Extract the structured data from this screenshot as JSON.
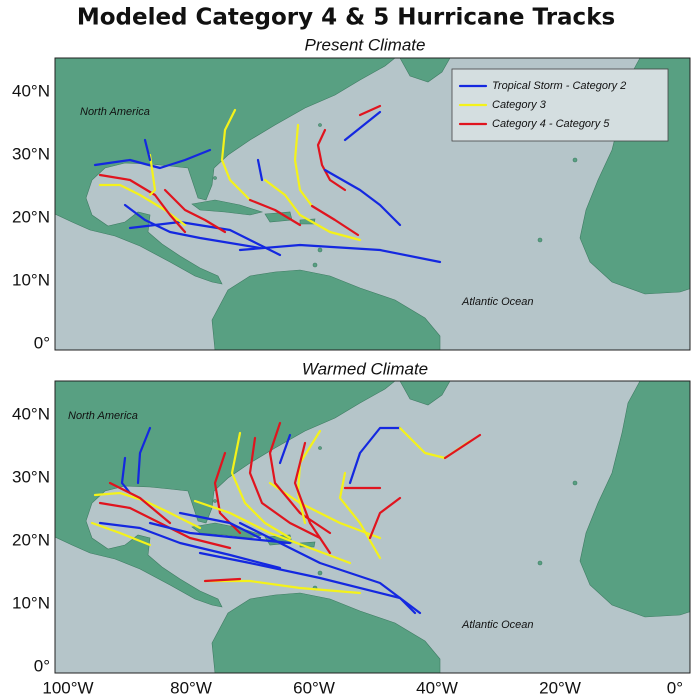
{
  "header": {
    "title": "Modeled Category 4 & 5 Hurricane Tracks"
  },
  "panels": [
    {
      "subtitle": "Present Climate",
      "north_america": "North America",
      "atlantic_ocean": "Atlantic Ocean",
      "yticks": [
        "40°N",
        "30°N",
        "20°N",
        "10°N",
        "0°"
      ]
    },
    {
      "subtitle": "Warmed Climate",
      "north_america": "North America",
      "atlantic_ocean": "Atlantic Ocean",
      "yticks": [
        "40°N",
        "30°N",
        "20°N",
        "10°N",
        "0°"
      ]
    }
  ],
  "legend": [
    {
      "label": "Tropical Storm - Category 2",
      "color": "#1428e0"
    },
    {
      "label": "Category 3",
      "color": "#f4f21a"
    },
    {
      "label": "Category 4 - Category 5",
      "color": "#e0141e"
    }
  ],
  "xticks": [
    "100°W",
    "80°W",
    "60°W",
    "40°W",
    "20°W",
    "0°"
  ]
}
